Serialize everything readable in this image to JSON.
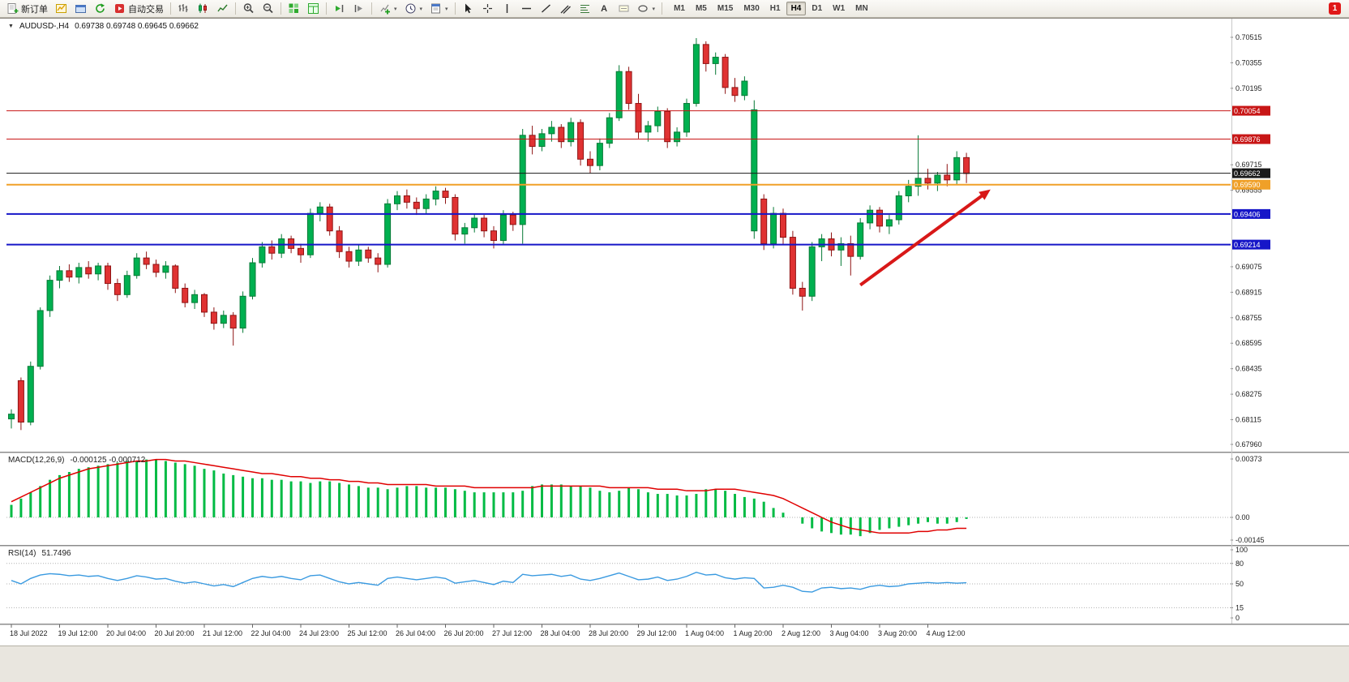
{
  "toolbar": {
    "new_order_label": "新订单",
    "autotrading_label": "自动交易",
    "text_tool_glyph": "A",
    "dropdown_glyph": "▾",
    "timeframes": [
      "M1",
      "M5",
      "M15",
      "M30",
      "H1",
      "H4",
      "D1",
      "W1",
      "MN"
    ],
    "active_timeframe": "H4",
    "notification_count": "1",
    "icon_names": [
      "new-order-icon",
      "new-chart-icon",
      "profiles-icon",
      "refresh-icon",
      "autotrading-icon",
      "bar-chart-icon",
      "candlestick-chart-icon",
      "line-chart-icon",
      "zoom-in-icon",
      "zoom-out-icon",
      "tile-windows-icon",
      "data-window-icon",
      "auto-scroll-icon",
      "chart-shift-icon",
      "indicators-icon",
      "periods-icon",
      "templates-icon",
      "cursor-icon",
      "crosshair-icon",
      "vertical-line-icon",
      "horizontal-line-icon",
      "trendline-icon",
      "channel-icon",
      "fibonacci-icon",
      "text-icon",
      "label-icon",
      "shapes-icon",
      "notification-icon"
    ]
  },
  "chart": {
    "dropdown_glyph": "▼",
    "title_symbol": "AUDUSD-,H4",
    "title_ohlc": "0.69738 0.69748 0.69645 0.69662"
  },
  "chart_data": {
    "type": "candlestick",
    "symbol": "AUDUSD-",
    "timeframe": "H4",
    "ohlc_current": {
      "open": 0.69738,
      "high": 0.69748,
      "low": 0.69645,
      "close": 0.69662
    },
    "y_axis": {
      "max": 0.70515,
      "min": 0.6796,
      "ticks": [
        0.70515,
        0.70355,
        0.70195,
        0.69715,
        0.69555,
        0.69075,
        0.68915,
        0.68755,
        0.68595,
        0.68435,
        0.68275,
        0.68115,
        0.6796
      ]
    },
    "hlines": [
      {
        "price": 0.70054,
        "label": "0.70054",
        "color": "#c81616",
        "width": 1
      },
      {
        "price": 0.69876,
        "label": "0.69876",
        "color": "#c81616",
        "width": 1
      },
      {
        "price": 0.69662,
        "label": "0.69662",
        "color": "#1a1a1a",
        "width": 1
      },
      {
        "price": 0.6959,
        "label": "0.69590",
        "color": "#f0a028",
        "width": 2
      },
      {
        "price": 0.69406,
        "label": "0.69406",
        "color": "#1616c8",
        "width": 2
      },
      {
        "price": 0.69214,
        "label": "0.69214",
        "color": "#1616c8",
        "width": 2
      }
    ],
    "candles": [
      [
        0.6812,
        0.6818,
        0.6806,
        0.6815
      ],
      [
        0.6836,
        0.6838,
        0.6805,
        0.681
      ],
      [
        0.681,
        0.6848,
        0.6808,
        0.6845
      ],
      [
        0.6845,
        0.6882,
        0.6843,
        0.688
      ],
      [
        0.688,
        0.6902,
        0.6876,
        0.6899
      ],
      [
        0.6899,
        0.6908,
        0.6894,
        0.6905
      ],
      [
        0.6905,
        0.6909,
        0.6898,
        0.6901
      ],
      [
        0.6901,
        0.691,
        0.6897,
        0.6907
      ],
      [
        0.6907,
        0.6911,
        0.69,
        0.6903
      ],
      [
        0.6903,
        0.691,
        0.6899,
        0.6908
      ],
      [
        0.6908,
        0.691,
        0.6893,
        0.6897
      ],
      [
        0.6897,
        0.69,
        0.6886,
        0.689
      ],
      [
        0.689,
        0.6905,
        0.6888,
        0.6902
      ],
      [
        0.6902,
        0.6916,
        0.69,
        0.6913
      ],
      [
        0.6913,
        0.6917,
        0.6906,
        0.6909
      ],
      [
        0.6909,
        0.6912,
        0.6901,
        0.6904
      ],
      [
        0.6904,
        0.6911,
        0.69,
        0.6908
      ],
      [
        0.6908,
        0.6909,
        0.6891,
        0.6894
      ],
      [
        0.6894,
        0.6897,
        0.6882,
        0.6885
      ],
      [
        0.6885,
        0.6893,
        0.6881,
        0.689
      ],
      [
        0.689,
        0.6891,
        0.6876,
        0.6879
      ],
      [
        0.6879,
        0.6882,
        0.6868,
        0.6872
      ],
      [
        0.6872,
        0.688,
        0.6869,
        0.6877
      ],
      [
        0.6877,
        0.6879,
        0.6858,
        0.6869
      ],
      [
        0.6869,
        0.6892,
        0.6866,
        0.6889
      ],
      [
        0.6889,
        0.6913,
        0.6887,
        0.691
      ],
      [
        0.691,
        0.6923,
        0.6907,
        0.692
      ],
      [
        0.692,
        0.6924,
        0.6912,
        0.6916
      ],
      [
        0.6916,
        0.6928,
        0.6913,
        0.6925
      ],
      [
        0.6925,
        0.6927,
        0.6916,
        0.6919
      ],
      [
        0.6919,
        0.6922,
        0.691,
        0.6915
      ],
      [
        0.6915,
        0.6944,
        0.6913,
        0.6941
      ],
      [
        0.6941,
        0.6948,
        0.6936,
        0.6945
      ],
      [
        0.6945,
        0.6947,
        0.6927,
        0.693
      ],
      [
        0.693,
        0.6933,
        0.6913,
        0.6917
      ],
      [
        0.6917,
        0.692,
        0.6907,
        0.6911
      ],
      [
        0.6911,
        0.6921,
        0.6908,
        0.6918
      ],
      [
        0.6918,
        0.692,
        0.691,
        0.6913
      ],
      [
        0.6913,
        0.6916,
        0.6904,
        0.6909
      ],
      [
        0.6909,
        0.695,
        0.6907,
        0.6947
      ],
      [
        0.6947,
        0.6955,
        0.6943,
        0.6952
      ],
      [
        0.6952,
        0.6956,
        0.6944,
        0.6948
      ],
      [
        0.6948,
        0.6951,
        0.694,
        0.6944
      ],
      [
        0.6944,
        0.6953,
        0.6941,
        0.695
      ],
      [
        0.695,
        0.6958,
        0.6946,
        0.6955
      ],
      [
        0.6955,
        0.6957,
        0.6947,
        0.6951
      ],
      [
        0.6951,
        0.6953,
        0.6924,
        0.6928
      ],
      [
        0.6928,
        0.6935,
        0.6922,
        0.6932
      ],
      [
        0.6932,
        0.6941,
        0.6929,
        0.6938
      ],
      [
        0.6938,
        0.694,
        0.6926,
        0.693
      ],
      [
        0.693,
        0.6933,
        0.6919,
        0.6924
      ],
      [
        0.6924,
        0.6943,
        0.6921,
        0.694
      ],
      [
        0.694,
        0.6942,
        0.693,
        0.6934
      ],
      [
        0.6934,
        0.6994,
        0.6922,
        0.699
      ],
      [
        0.699,
        0.6996,
        0.6978,
        0.6983
      ],
      [
        0.6983,
        0.6994,
        0.698,
        0.6991
      ],
      [
        0.6991,
        0.6999,
        0.6986,
        0.6995
      ],
      [
        0.6995,
        0.6997,
        0.6982,
        0.6986
      ],
      [
        0.6986,
        0.7001,
        0.6983,
        0.6998
      ],
      [
        0.6998,
        0.7,
        0.6971,
        0.6975
      ],
      [
        0.6975,
        0.698,
        0.6966,
        0.6971
      ],
      [
        0.6971,
        0.6988,
        0.6968,
        0.6985
      ],
      [
        0.6985,
        0.7004,
        0.6982,
        0.7001
      ],
      [
        0.7001,
        0.7034,
        0.6999,
        0.703
      ],
      [
        0.703,
        0.7033,
        0.7006,
        0.701
      ],
      [
        0.701,
        0.7016,
        0.6988,
        0.6992
      ],
      [
        0.6992,
        0.6999,
        0.6986,
        0.6996
      ],
      [
        0.6996,
        0.7008,
        0.6992,
        0.7005
      ],
      [
        0.7005,
        0.7007,
        0.6982,
        0.6986
      ],
      [
        0.6986,
        0.6995,
        0.6983,
        0.6992
      ],
      [
        0.6992,
        0.7013,
        0.6989,
        0.701
      ],
      [
        0.701,
        0.7051,
        0.7008,
        0.7047
      ],
      [
        0.7047,
        0.7049,
        0.703,
        0.7035
      ],
      [
        0.7035,
        0.7042,
        0.7028,
        0.7039
      ],
      [
        0.7039,
        0.7041,
        0.7016,
        0.702
      ],
      [
        0.702,
        0.7026,
        0.7011,
        0.7015
      ],
      [
        0.7015,
        0.7027,
        0.7012,
        0.7024
      ],
      [
        0.693,
        0.7012,
        0.6925,
        0.7006
      ],
      [
        0.695,
        0.6953,
        0.6918,
        0.6922
      ],
      [
        0.6922,
        0.6945,
        0.6919,
        0.6941
      ],
      [
        0.6941,
        0.6944,
        0.6921,
        0.6926
      ],
      [
        0.6926,
        0.693,
        0.689,
        0.6894
      ],
      [
        0.6894,
        0.6898,
        0.688,
        0.6889
      ],
      [
        0.6889,
        0.6923,
        0.6886,
        0.692
      ],
      [
        0.692,
        0.6928,
        0.6911,
        0.6925
      ],
      [
        0.6925,
        0.6929,
        0.6914,
        0.6918
      ],
      [
        0.6918,
        0.6926,
        0.6908,
        0.6922
      ],
      [
        0.6922,
        0.6927,
        0.6902,
        0.6914
      ],
      [
        0.6914,
        0.6938,
        0.6912,
        0.6935
      ],
      [
        0.6935,
        0.6946,
        0.6931,
        0.6943
      ],
      [
        0.6943,
        0.6945,
        0.6929,
        0.6933
      ],
      [
        0.6933,
        0.694,
        0.6928,
        0.6937
      ],
      [
        0.6937,
        0.6955,
        0.6934,
        0.6952
      ],
      [
        0.6952,
        0.6962,
        0.6948,
        0.6958
      ],
      [
        0.6958,
        0.699,
        0.6952,
        0.6963
      ],
      [
        0.6963,
        0.6969,
        0.6956,
        0.696
      ],
      [
        0.696,
        0.6967,
        0.6955,
        0.6965
      ],
      [
        0.6965,
        0.6972,
        0.6958,
        0.6962
      ],
      [
        0.6962,
        0.698,
        0.6959,
        0.6976
      ],
      [
        0.6976,
        0.6979,
        0.696,
        0.6966
      ]
    ],
    "time_labels": [
      "18 Jul 2022",
      "19 Jul 12:00",
      "20 Jul 04:00",
      "20 Jul 20:00",
      "21 Jul 12:00",
      "22 Jul 04:00",
      "24 Jul 23:00",
      "25 Jul 12:00",
      "26 Jul 04:00",
      "26 Jul 20:00",
      "27 Jul 12:00",
      "28 Jul 04:00",
      "28 Jul 20:00",
      "29 Jul 12:00",
      "1 Aug 04:00",
      "1 Aug 20:00",
      "2 Aug 12:00",
      "3 Aug 04:00",
      "3 Aug 20:00",
      "4 Aug 12:00"
    ],
    "label_every": 5,
    "arrow": {
      "from_index": 88,
      "from_price": 0.6896,
      "to_index": 101.5,
      "to_price": 0.6956,
      "color": "#d81818"
    },
    "macd": {
      "label": "MACD(12,26,9)",
      "values_text": "-0.000125 -0.000712",
      "max": 0.00373,
      "min": -0.00145,
      "scale": [
        {
          "v": 0.00373,
          "t": "0.00373"
        },
        {
          "v": 0,
          "t": "0.00"
        },
        {
          "v": -0.00145,
          "t": "-0.00145"
        }
      ],
      "histogram": [
        0.0008,
        0.0012,
        0.0016,
        0.002,
        0.0024,
        0.0027,
        0.0029,
        0.0031,
        0.0032,
        0.0033,
        0.0034,
        0.0035,
        0.0036,
        0.0036,
        0.0037,
        0.0037,
        0.0036,
        0.0035,
        0.0034,
        0.0033,
        0.0031,
        0.003,
        0.0028,
        0.0027,
        0.0026,
        0.0025,
        0.0025,
        0.0024,
        0.0024,
        0.0023,
        0.0023,
        0.0022,
        0.0023,
        0.0023,
        0.0022,
        0.0021,
        0.002,
        0.0019,
        0.0019,
        0.0018,
        0.0019,
        0.002,
        0.002,
        0.0019,
        0.0019,
        0.0019,
        0.0018,
        0.0017,
        0.0016,
        0.0016,
        0.0016,
        0.0016,
        0.0016,
        0.0017,
        0.002,
        0.0021,
        0.0021,
        0.0021,
        0.002,
        0.002,
        0.0019,
        0.0017,
        0.0016,
        0.0017,
        0.0019,
        0.0018,
        0.0016,
        0.0015,
        0.0015,
        0.0014,
        0.0014,
        0.0015,
        0.0018,
        0.0018,
        0.0017,
        0.0015,
        0.0013,
        0.0012,
        0.001,
        0.0006,
        0.0003,
        0.0,
        -0.0004,
        -0.0007,
        -0.0009,
        -0.001,
        -0.0011,
        -0.0011,
        -0.0012,
        -0.001,
        -0.0008,
        -0.0007,
        -0.0006,
        -0.0005,
        -0.0004,
        -0.0003,
        -0.0004,
        -0.0004,
        -0.0003,
        -0.0001
      ],
      "signal": [
        0.001,
        0.0013,
        0.0016,
        0.0019,
        0.0022,
        0.0025,
        0.0027,
        0.0029,
        0.0031,
        0.0032,
        0.0033,
        0.0034,
        0.0035,
        0.0036,
        0.0036,
        0.0037,
        0.0037,
        0.0036,
        0.0036,
        0.0035,
        0.0034,
        0.0033,
        0.0032,
        0.0031,
        0.003,
        0.0029,
        0.0028,
        0.0028,
        0.0027,
        0.0026,
        0.0026,
        0.0025,
        0.0025,
        0.0024,
        0.0024,
        0.0023,
        0.0023,
        0.0022,
        0.0022,
        0.0021,
        0.0021,
        0.0021,
        0.0021,
        0.0021,
        0.002,
        0.002,
        0.002,
        0.002,
        0.0019,
        0.0019,
        0.0019,
        0.0019,
        0.0019,
        0.0019,
        0.0019,
        0.002,
        0.002,
        0.002,
        0.002,
        0.002,
        0.002,
        0.002,
        0.0019,
        0.0019,
        0.0019,
        0.0019,
        0.0019,
        0.0018,
        0.0018,
        0.0018,
        0.0017,
        0.0017,
        0.0017,
        0.0018,
        0.0018,
        0.0018,
        0.0017,
        0.0016,
        0.0015,
        0.0014,
        0.0012,
        0.0009,
        0.0006,
        0.0003,
        0.0,
        -0.0003,
        -0.0005,
        -0.0007,
        -0.0008,
        -0.0009,
        -0.001,
        -0.001,
        -0.001,
        -0.001,
        -0.0009,
        -0.0009,
        -0.0008,
        -0.0008,
        -0.0007,
        -0.0007
      ]
    },
    "rsi": {
      "label": "RSI(14)",
      "value_text": "51.7496",
      "levels": [
        80,
        50,
        15
      ],
      "scale": [
        {
          "v": 100,
          "t": "100"
        },
        {
          "v": 80,
          "t": "80"
        },
        {
          "v": 50,
          "t": "50"
        },
        {
          "v": 15,
          "t": "15"
        },
        {
          "v": 0,
          "t": "0"
        }
      ],
      "values": [
        55,
        50,
        58,
        63,
        65,
        64,
        62,
        63,
        61,
        62,
        58,
        55,
        58,
        62,
        60,
        57,
        58,
        54,
        51,
        53,
        50,
        47,
        49,
        46,
        52,
        58,
        61,
        59,
        61,
        58,
        56,
        62,
        63,
        58,
        53,
        50,
        52,
        50,
        48,
        58,
        60,
        58,
        56,
        58,
        60,
        58,
        51,
        53,
        55,
        52,
        49,
        54,
        52,
        64,
        62,
        63,
        64,
        61,
        63,
        57,
        55,
        58,
        62,
        66,
        61,
        56,
        57,
        60,
        55,
        57,
        61,
        67,
        63,
        64,
        59,
        57,
        59,
        58,
        44,
        45,
        48,
        45,
        39,
        38,
        44,
        45,
        43,
        44,
        42,
        46,
        48,
        46,
        47,
        50,
        51,
        52,
        51,
        52,
        51,
        51.7
      ]
    },
    "colors": {
      "up": "#00b050",
      "up_dark": "#067a36",
      "down": "#e03232",
      "down_dark": "#8f1414",
      "macd_hist": "#00bb44",
      "macd_signal": "#e00000",
      "rsi_line": "#3a9ae0",
      "bid_line": "#1a1a1a"
    }
  }
}
